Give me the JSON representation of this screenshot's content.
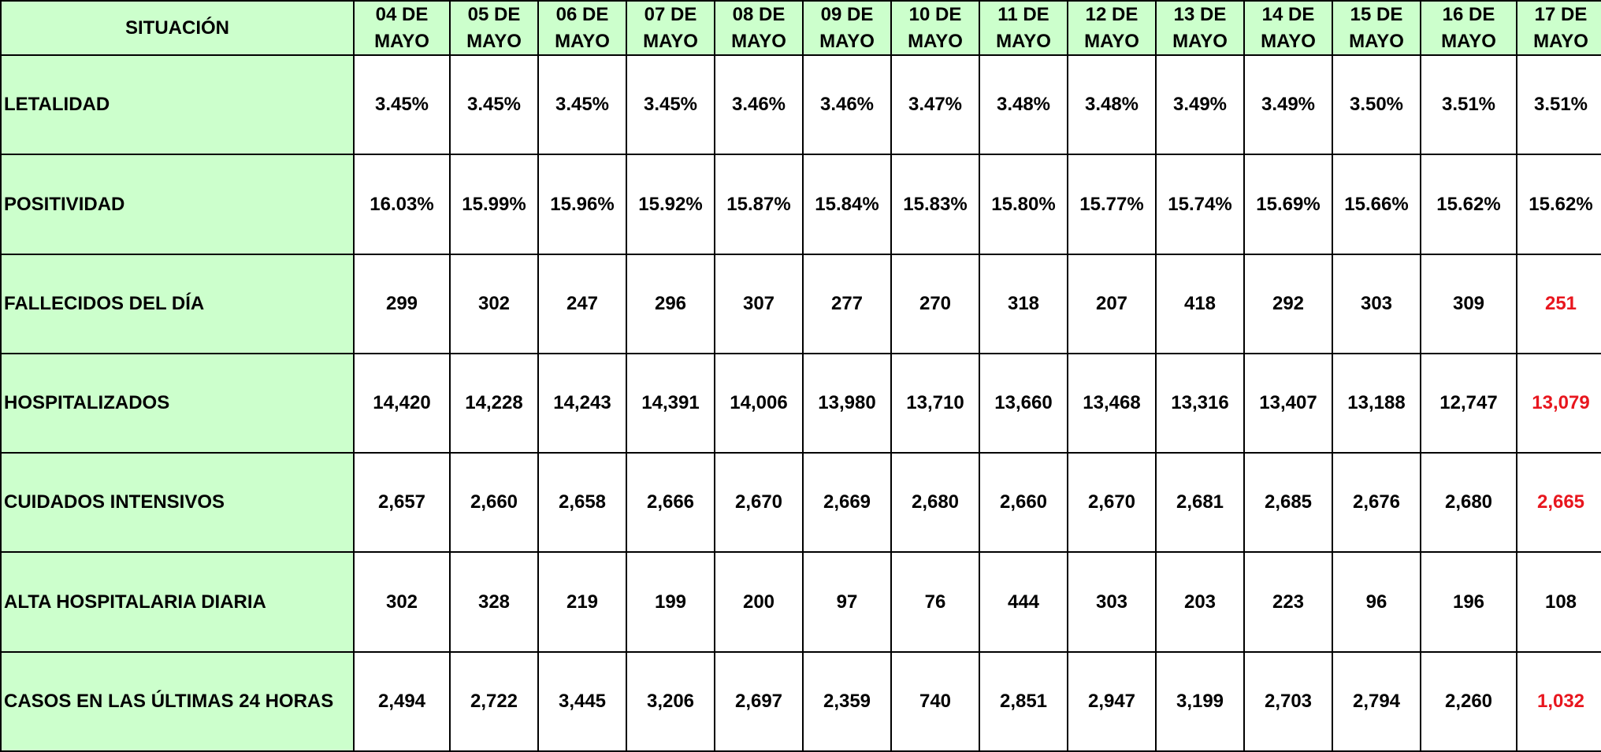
{
  "table": {
    "corner_header": "SITUACIÓN",
    "dates": [
      {
        "day": "04 DE",
        "month": "MAYO"
      },
      {
        "day": "05 DE",
        "month": "MAYO"
      },
      {
        "day": "06 DE",
        "month": "MAYO"
      },
      {
        "day": "07 DE",
        "month": "MAYO"
      },
      {
        "day": "08 DE",
        "month": "MAYO"
      },
      {
        "day": "09 DE",
        "month": "MAYO"
      },
      {
        "day": "10 DE",
        "month": "MAYO"
      },
      {
        "day": "11 DE",
        "month": "MAYO"
      },
      {
        "day": "12 DE",
        "month": "MAYO"
      },
      {
        "day": "13 DE",
        "month": "MAYO"
      },
      {
        "day": "14 DE",
        "month": "MAYO"
      },
      {
        "day": "15 DE",
        "month": "MAYO"
      },
      {
        "day": "16 DE",
        "month": "MAYO"
      },
      {
        "day": "17 DE",
        "month": "MAYO"
      }
    ],
    "rows": [
      {
        "label": "LETALIDAD",
        "values": [
          "3.45%",
          "3.45%",
          "3.45%",
          "3.45%",
          "3.46%",
          "3.46%",
          "3.47%",
          "3.48%",
          "3.48%",
          "3.49%",
          "3.49%",
          "3.50%",
          "3.51%",
          "3.51%"
        ],
        "last_highlighted": false
      },
      {
        "label": "POSITIVIDAD",
        "values": [
          "16.03%",
          "15.99%",
          "15.96%",
          "15.92%",
          "15.87%",
          "15.84%",
          "15.83%",
          "15.80%",
          "15.77%",
          "15.74%",
          "15.69%",
          "15.66%",
          "15.62%",
          "15.62%"
        ],
        "last_highlighted": false
      },
      {
        "label": "FALLECIDOS DEL DÍA",
        "values": [
          "299",
          "302",
          "247",
          "296",
          "307",
          "277",
          "270",
          "318",
          "207",
          "418",
          "292",
          "303",
          "309",
          "251"
        ],
        "last_highlighted": true
      },
      {
        "label": "HOSPITALIZADOS",
        "values": [
          "14,420",
          "14,228",
          "14,243",
          "14,391",
          "14,006",
          "13,980",
          "13,710",
          "13,660",
          "13,468",
          "13,316",
          "13,407",
          "13,188",
          "12,747",
          "13,079"
        ],
        "last_highlighted": true
      },
      {
        "label": "CUIDADOS INTENSIVOS",
        "values": [
          "2,657",
          "2,660",
          "2,658",
          "2,666",
          "2,670",
          "2,669",
          "2,680",
          "2,660",
          "2,670",
          "2,681",
          "2,685",
          "2,676",
          "2,680",
          "2,665"
        ],
        "last_highlighted": true
      },
      {
        "label": "ALTA HOSPITALARIA  DIARIA",
        "values": [
          "302",
          "328",
          "219",
          "199",
          "200",
          "97",
          "76",
          "444",
          "303",
          "203",
          "223",
          "96",
          "196",
          "108"
        ],
        "last_highlighted": false
      },
      {
        "label": "CASOS EN LAS ÚLTIMAS 24 HORAS",
        "values": [
          "2,494",
          "2,722",
          "3,445",
          "3,206",
          "2,697",
          "2,359",
          "740",
          "2,851",
          "2,947",
          "3,199",
          "2,703",
          "2,794",
          "2,260",
          "1,032"
        ],
        "last_highlighted": true
      }
    ],
    "colors": {
      "header_bg": "#ccffcc",
      "label_bg": "#ccffcc",
      "cell_bg": "#ffffff",
      "border": "#000000",
      "text": "#000000",
      "highlight_text": "#e8161e"
    }
  }
}
